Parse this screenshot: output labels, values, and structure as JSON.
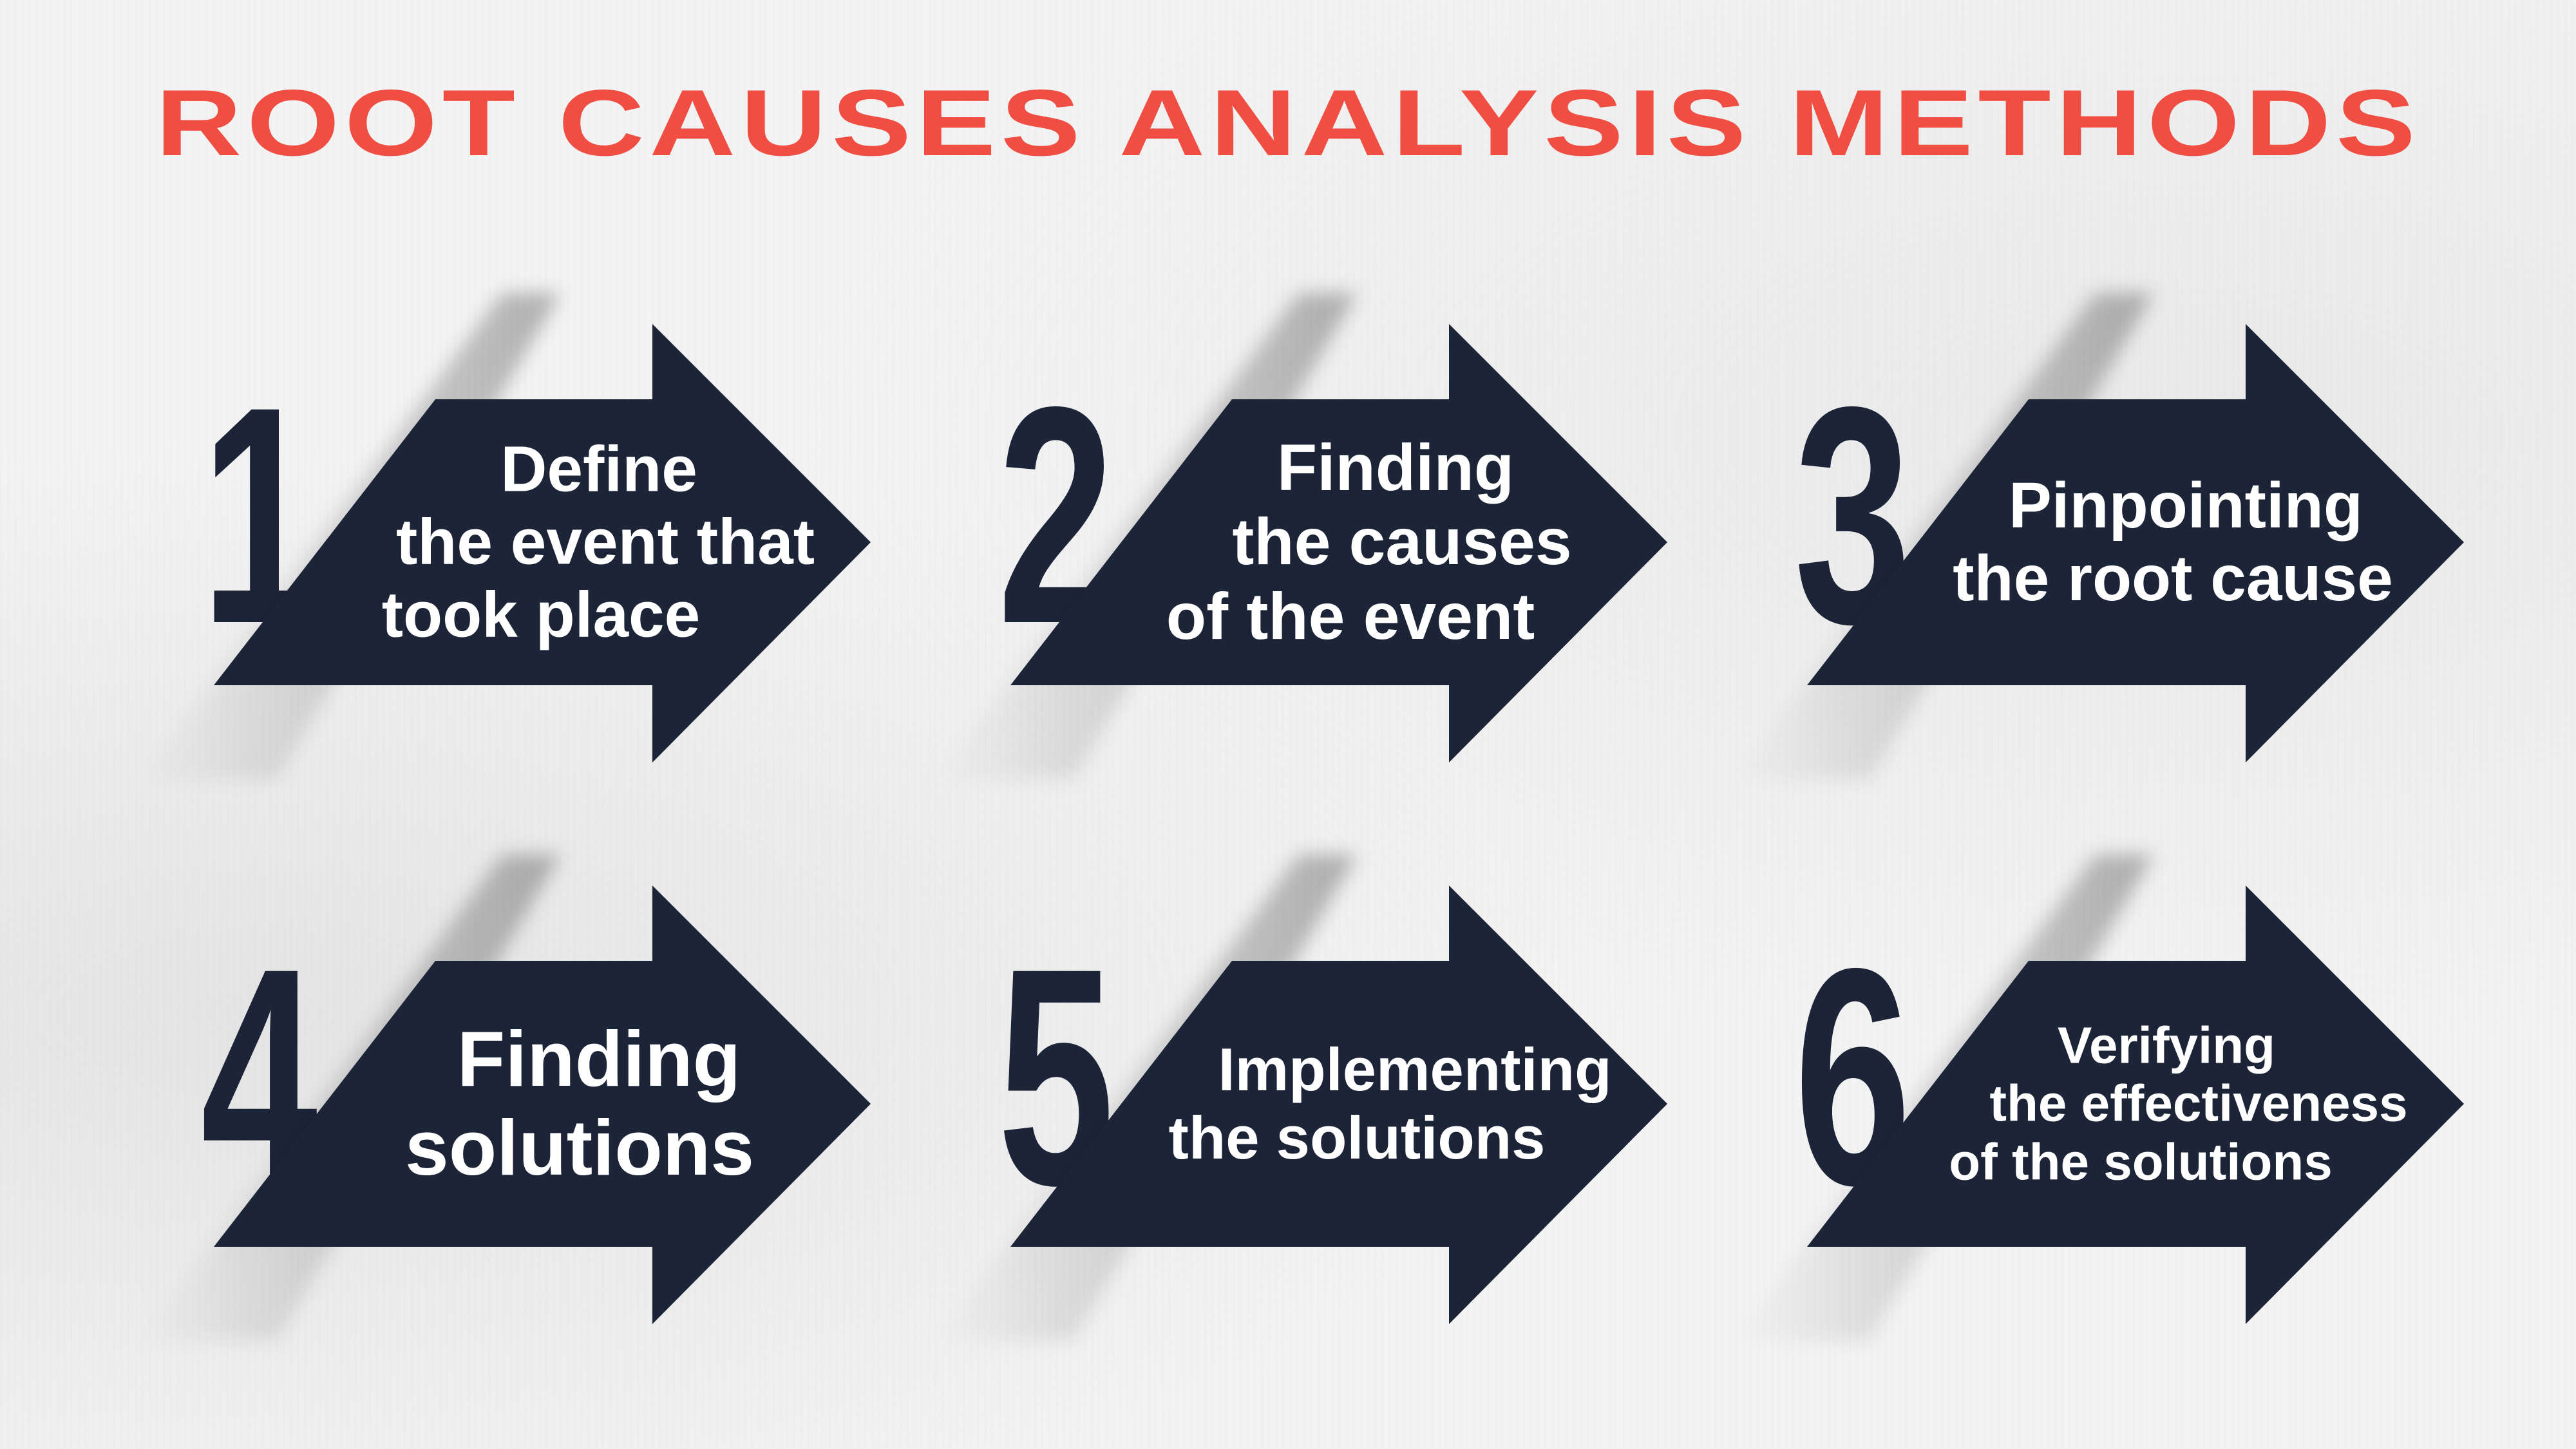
{
  "title": "ROOT CAUSES ANALYSIS METHODS",
  "colors": {
    "title": "#f04d43",
    "arrow": "#1c2438",
    "text": "#ffffff",
    "background": "#f3f3f3"
  },
  "steps": [
    {
      "number": "1",
      "lines": [
        "Define",
        "the event that",
        "took place"
      ],
      "icon": "arrow-right-icon"
    },
    {
      "number": "2",
      "lines": [
        "Finding",
        "the causes",
        "of the event"
      ],
      "icon": "arrow-right-icon"
    },
    {
      "number": "3",
      "lines": [
        "Pinpointing",
        "the root cause"
      ],
      "icon": "arrow-right-icon"
    },
    {
      "number": "4",
      "lines": [
        "Finding",
        "solutions"
      ],
      "icon": "arrow-right-icon"
    },
    {
      "number": "5",
      "lines": [
        "Implementing",
        "the solutions"
      ],
      "icon": "arrow-right-icon"
    },
    {
      "number": "6",
      "lines": [
        "Verifying",
        "the effectiveness",
        "of the solutions"
      ],
      "icon": "arrow-right-icon"
    }
  ]
}
